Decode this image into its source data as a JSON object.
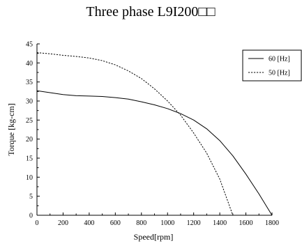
{
  "chart_data": {
    "type": "line",
    "title": "Three phase L9I200□□",
    "xlabel": "Speed[rpm]",
    "ylabel": "Torque [kg-cm]",
    "xlim": [
      0,
      1800
    ],
    "ylim": [
      0,
      45
    ],
    "xticks": [
      0,
      200,
      400,
      600,
      800,
      1000,
      1200,
      1400,
      1600,
      1800
    ],
    "yticks": [
      0,
      5,
      10,
      15,
      20,
      25,
      30,
      35,
      40,
      45
    ],
    "grid": false,
    "legend_position": "top-right",
    "series": [
      {
        "name": "60 [Hz]",
        "style": "solid",
        "color": "#000000",
        "x": [
          0,
          100,
          200,
          300,
          400,
          500,
          600,
          700,
          800,
          900,
          1000,
          1100,
          1200,
          1300,
          1400,
          1500,
          1600,
          1700,
          1800
        ],
        "y": [
          32.7,
          32.2,
          31.7,
          31.4,
          31.3,
          31.2,
          30.9,
          30.5,
          29.8,
          29.0,
          28.0,
          26.7,
          25.0,
          22.7,
          19.6,
          15.6,
          10.8,
          5.6,
          0
        ]
      },
      {
        "name": "50 [Hz]",
        "style": "dashed",
        "color": "#000000",
        "x": [
          0,
          100,
          200,
          300,
          400,
          500,
          600,
          700,
          800,
          900,
          1000,
          1100,
          1200,
          1300,
          1400,
          1500
        ],
        "y": [
          42.7,
          42.4,
          42.0,
          41.7,
          41.3,
          40.6,
          39.5,
          37.9,
          35.9,
          33.2,
          30.0,
          26.3,
          21.6,
          16.3,
          9.5,
          0
        ]
      }
    ]
  }
}
